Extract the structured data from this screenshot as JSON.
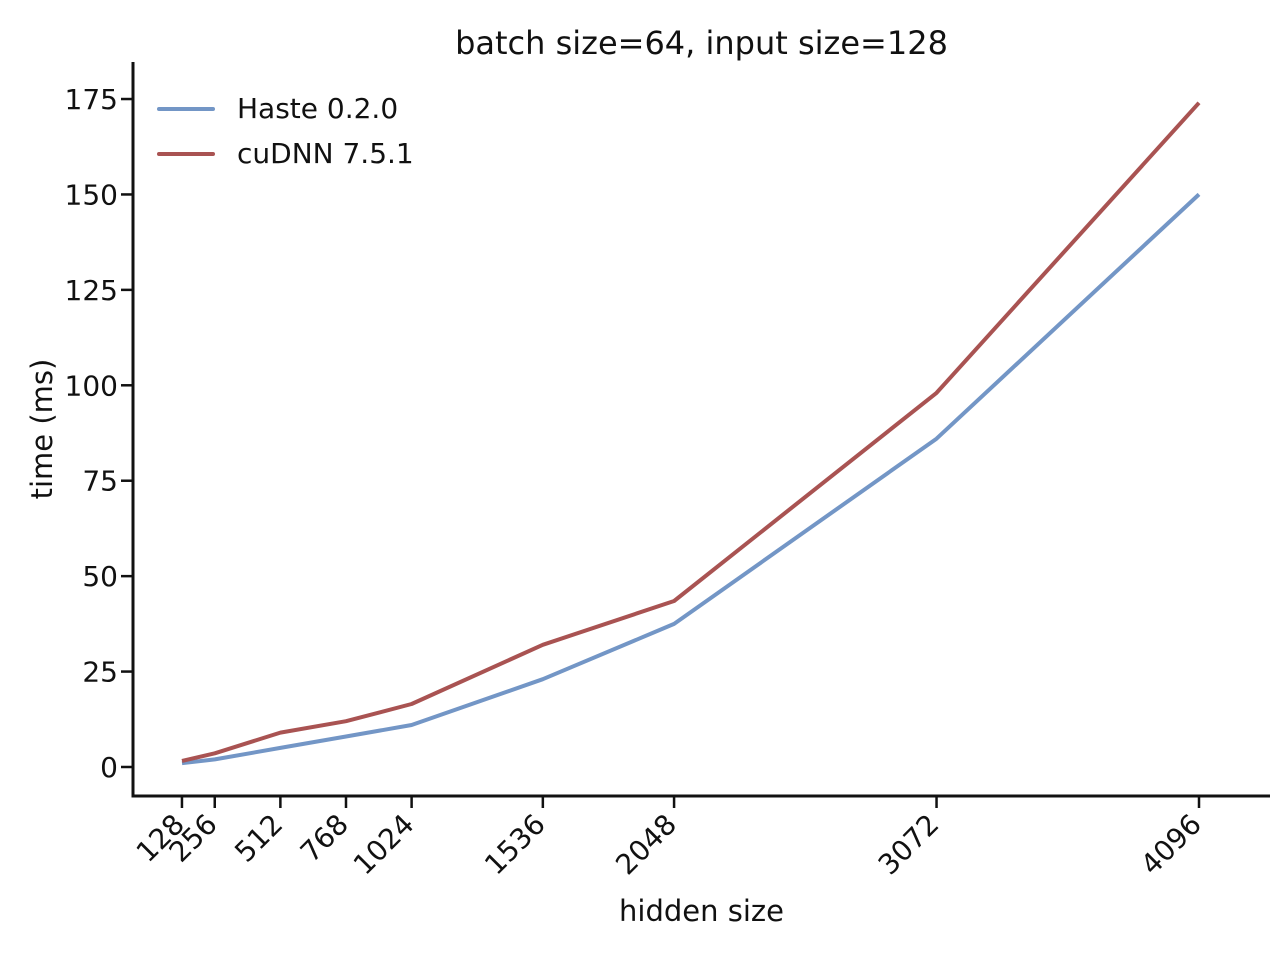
{
  "chart_data": {
    "type": "line",
    "title": "batch size=64, input size=128",
    "xlabel": "hidden size",
    "ylabel": "time (ms)",
    "x": [
      128,
      256,
      512,
      768,
      1024,
      1536,
      2048,
      3072,
      4096
    ],
    "x_tick_labels": [
      "128",
      "256",
      "512",
      "768",
      "1024",
      "1536",
      "2048",
      "3072",
      "4096"
    ],
    "y_ticks": [
      0,
      25,
      50,
      75,
      100,
      125,
      150,
      175
    ],
    "xlim": [
      -63,
      4373
    ],
    "ylim": [
      -7.6,
      184.7
    ],
    "grid": false,
    "legend_position": "upper left",
    "axis_color": "#111111",
    "series": [
      {
        "name": "Haste 0.2.0",
        "color": "#7396c6",
        "values": [
          1,
          2,
          5,
          8,
          11,
          23,
          37.5,
          86,
          150
        ]
      },
      {
        "name": "cuDNN 7.5.1",
        "color": "#a95352",
        "values": [
          1.6,
          3.6,
          9,
          12,
          16.5,
          32,
          43.5,
          98,
          174
        ]
      }
    ]
  }
}
